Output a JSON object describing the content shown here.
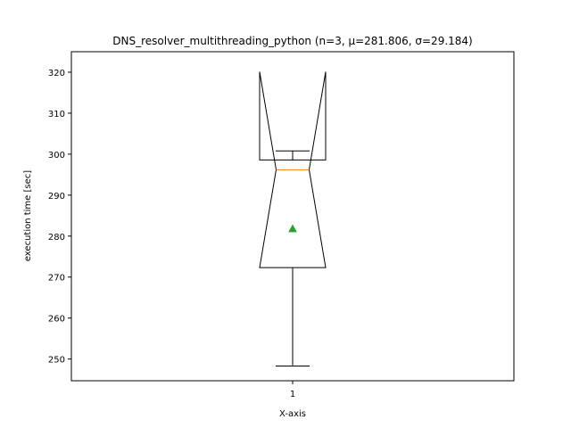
{
  "chart_data": {
    "type": "boxplot",
    "title": "DNS_resolver_multithreading_python (n=3, μ=281.806, σ=29.184)",
    "xlabel": "X-axis",
    "ylabel": "execution time [sec]",
    "ylim": [
      244.7,
      325.0
    ],
    "yticks": [
      250,
      260,
      270,
      280,
      290,
      300,
      310,
      320
    ],
    "categories": [
      "1"
    ],
    "grid": false,
    "legend": "none",
    "notch": true,
    "show_mean": true,
    "box": {
      "whisker_low": 248.3,
      "q1": 272.3,
      "median": 296.2,
      "q3": 298.6,
      "whisker_high": 300.8,
      "notch_low": 272.3,
      "notch_high": 320.1,
      "mean": 281.806
    },
    "colors": {
      "box": "#000000",
      "median": "#ff7f0e",
      "mean": "#2ca02c"
    }
  }
}
